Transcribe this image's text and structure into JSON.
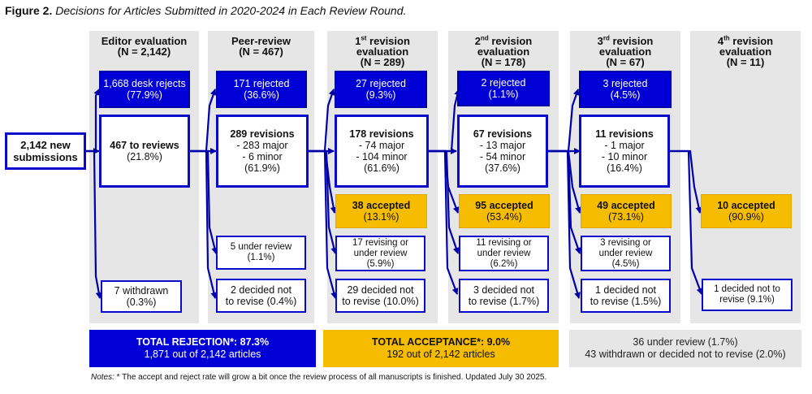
{
  "figure": {
    "label": "Figure 2.",
    "title": "Decisions for Articles Submitted in 2020-2024 in Each Review Round."
  },
  "start": {
    "line1": "2,142 new",
    "line2": "submissions"
  },
  "columns": {
    "editor": {
      "head1": "Editor evaluation",
      "head2": "(N = 2,142)",
      "rejected": {
        "line1": "1,668 desk rejects",
        "line2": "(77.9%)"
      },
      "main": {
        "line1": "467 to reviews",
        "line2": "(21.8%)"
      },
      "withdrawn": {
        "line1": "7 withdrawn",
        "line2": "(0.3%)"
      }
    },
    "peer": {
      "head1": "Peer-review",
      "head2": "(N = 467)",
      "rejected": {
        "line1": "171 rejected",
        "line2": "(36.6%)"
      },
      "main": {
        "line1": "289 revisions",
        "line2": "- 283 major",
        "line3": "- 6 minor",
        "line4": "(61.9%)"
      },
      "review": {
        "line1": "5 under review",
        "line2": "(1.1%)"
      },
      "notrevise": {
        "line1": "2 decided not",
        "line2": "to revise (0.4%)"
      }
    },
    "r1": {
      "ord_num": "1",
      "ord_suf": "st",
      "head1_rest": " revision",
      "head2": "evaluation",
      "head3": "(N = 289)",
      "rejected": {
        "line1": "27 rejected",
        "line2": "(9.3%)"
      },
      "main": {
        "line1": "178 revisions",
        "line2": "- 74 major",
        "line3": "- 104 minor",
        "line4": "(61.6%)"
      },
      "accepted": {
        "line1": "38 accepted",
        "line2": "(13.1%)"
      },
      "review": {
        "line1": "17 revising or",
        "line2": "under review",
        "line3": "(5.9%)"
      },
      "notrevise": {
        "line1": "29 decided not",
        "line2": "to revise (10.0%)"
      }
    },
    "r2": {
      "ord_num": "2",
      "ord_suf": "nd",
      "head1_rest": " revision",
      "head2": "evaluation",
      "head3": "(N = 178)",
      "rejected": {
        "line1": "2 rejected",
        "line2": "(1.1%)"
      },
      "main": {
        "line1": "67 revisions",
        "line2": "- 13 major",
        "line3": "- 54 minor",
        "line4": "(37.6%)"
      },
      "accepted": {
        "line1": "95 accepted",
        "line2": "(53.4%)"
      },
      "review": {
        "line1": "11 revising or",
        "line2": "under review",
        "line3": "(6.2%)"
      },
      "notrevise": {
        "line1": "3 decided not",
        "line2": "to revise (1.7%)"
      }
    },
    "r3": {
      "ord_num": "3",
      "ord_suf": "rd",
      "head1_rest": " revision",
      "head2": "evaluation",
      "head3": "(N = 67)",
      "rejected": {
        "line1": "3 rejected",
        "line2": "(4.5%)"
      },
      "main": {
        "line1": "11 revisions",
        "line2": "- 1 major",
        "line3": "- 10 minor",
        "line4": "(16.4%)"
      },
      "accepted": {
        "line1": "49 accepted",
        "line2": "(73.1%)"
      },
      "review": {
        "line1": "3 revising or",
        "line2": "under review",
        "line3": "(4.5%)"
      },
      "notrevise": {
        "line1": "1 decided not",
        "line2": "to revise (1.5%)"
      }
    },
    "r4": {
      "ord_num": "4",
      "ord_suf": "th",
      "head1_rest": " revision",
      "head2": "evaluation",
      "head3": "(N = 11)",
      "accepted": {
        "line1": "10 accepted",
        "line2": "(90.9%)"
      },
      "notrevise": {
        "line1": "1 decided not to",
        "line2": "revise (9.1%)"
      }
    }
  },
  "totals": {
    "rejection": {
      "line1": "TOTAL REJECTION*: 87.3%",
      "line2": "1,871 out of 2,142 articles"
    },
    "acceptance": {
      "line1": "TOTAL ACCEPTANCE*: 9.0%",
      "line2": "192 out of 2,142 articles"
    },
    "other": {
      "line1": "36 under review (1.7%)",
      "line2": "43 withdrawn or decided not to revise (2.0%)"
    }
  },
  "notes": {
    "label": "Notes:",
    "text": " * The accept and reject rate will grow a bit once the review process of all manuscripts is finished. Updated July 30 2025."
  },
  "colors": {
    "blue": "#0000d6",
    "gold": "#f6bd00",
    "column_bg": "#e6e6e6"
  }
}
